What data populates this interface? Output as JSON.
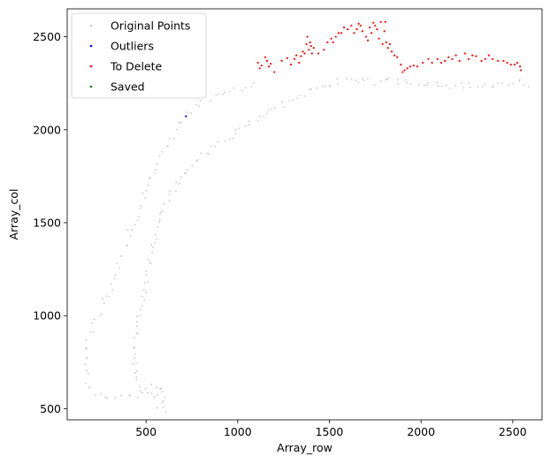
{
  "chart_data": {
    "type": "scatter",
    "title": "",
    "xlabel": "Array_row",
    "ylabel": "Array_col",
    "xlim": [
      70,
      2660
    ],
    "ylim": [
      440,
      2650
    ],
    "xticks": [
      500,
      1000,
      1500,
      2000,
      2500
    ],
    "yticks": [
      500,
      1000,
      1500,
      2000,
      2500
    ],
    "grid": false,
    "legend_placement": "upper-left",
    "series": [
      {
        "name": "Original Points",
        "color": "#c8c8c8",
        "marker": "dot",
        "point_source": "outline",
        "outline_segments": [
          [
            [
              560,
              490
            ],
            [
              580,
              520
            ],
            [
              600,
              580
            ],
            [
              580,
              620
            ],
            [
              530,
              615
            ],
            [
              480,
              605
            ],
            [
              450,
              640
            ],
            [
              440,
              760
            ],
            [
              445,
              880
            ],
            [
              460,
              1000
            ],
            [
              480,
              1100
            ],
            [
              500,
              1200
            ],
            [
              520,
              1300
            ],
            [
              545,
              1400
            ],
            [
              575,
              1500
            ],
            [
              610,
              1600
            ],
            [
              650,
              1680
            ],
            [
              700,
              1750
            ],
            [
              760,
              1820
            ],
            [
              820,
              1870
            ],
            [
              900,
              1920
            ],
            [
              980,
              1970
            ],
            [
              1060,
              2030
            ],
            [
              1150,
              2090
            ],
            [
              1250,
              2140
            ],
            [
              1350,
              2190
            ],
            [
              1450,
              2230
            ],
            [
              1550,
              2255
            ],
            [
              1650,
              2260
            ],
            [
              1750,
              2255
            ],
            [
              1850,
              2265
            ],
            [
              1950,
              2260
            ],
            [
              2050,
              2250
            ],
            [
              2150,
              2240
            ],
            [
              2250,
              2235
            ],
            [
              2350,
              2230
            ],
            [
              2450,
              2240
            ],
            [
              2550,
              2255
            ],
            [
              2600,
              2245
            ]
          ],
          [
            [
              600,
              490
            ],
            [
              570,
              560
            ],
            [
              520,
              580
            ],
            [
              450,
              575
            ],
            [
              380,
              570
            ],
            [
              300,
              575
            ],
            [
              230,
              580
            ],
            [
              180,
              640
            ],
            [
              170,
              760
            ],
            [
              180,
              880
            ],
            [
              220,
              960
            ],
            [
              260,
              1040
            ],
            [
              300,
              1130
            ],
            [
              340,
              1240
            ],
            [
              380,
              1350
            ],
            [
              420,
              1460
            ],
            [
              460,
              1550
            ],
            [
              490,
              1640
            ],
            [
              520,
              1720
            ],
            [
              560,
              1800
            ],
            [
              600,
              1880
            ],
            [
              640,
              1960
            ],
            [
              680,
              2030
            ],
            [
              720,
              2080
            ],
            [
              790,
              2130
            ],
            [
              870,
              2170
            ],
            [
              960,
              2200
            ],
            [
              1050,
              2240
            ],
            [
              1110,
              2270
            ]
          ]
        ],
        "count_per_segment": [
          150,
          90
        ],
        "jitter": [
          14,
          18
        ]
      },
      {
        "name": "Outliers",
        "color": "#0000ff",
        "marker": "dot",
        "points": [
          [
            718,
            2072
          ]
        ]
      },
      {
        "name": "To Delete",
        "color": "#ff0000",
        "marker": "dot",
        "points": [
          [
            1110,
            2360
          ],
          [
            1120,
            2330
          ],
          [
            1130,
            2345
          ],
          [
            1150,
            2390
          ],
          [
            1160,
            2370
          ],
          [
            1170,
            2340
          ],
          [
            1180,
            2355
          ],
          [
            1200,
            2310
          ],
          [
            1240,
            2370
          ],
          [
            1270,
            2385
          ],
          [
            1290,
            2350
          ],
          [
            1310,
            2380
          ],
          [
            1320,
            2400
          ],
          [
            1335,
            2360
          ],
          [
            1345,
            2395
          ],
          [
            1355,
            2420
          ],
          [
            1365,
            2410
          ],
          [
            1375,
            2460
          ],
          [
            1380,
            2500
          ],
          [
            1388,
            2430
          ],
          [
            1395,
            2470
          ],
          [
            1400,
            2450
          ],
          [
            1405,
            2410
          ],
          [
            1415,
            2440
          ],
          [
            1440,
            2410
          ],
          [
            1470,
            2430
          ],
          [
            1490,
            2470
          ],
          [
            1510,
            2490
          ],
          [
            1520,
            2470
          ],
          [
            1535,
            2500
          ],
          [
            1550,
            2520
          ],
          [
            1565,
            2520
          ],
          [
            1580,
            2550
          ],
          [
            1600,
            2540
          ],
          [
            1620,
            2560
          ],
          [
            1635,
            2520
          ],
          [
            1650,
            2540
          ],
          [
            1660,
            2570
          ],
          [
            1670,
            2560
          ],
          [
            1680,
            2530
          ],
          [
            1700,
            2500
          ],
          [
            1710,
            2480
          ],
          [
            1720,
            2550
          ],
          [
            1730,
            2520
          ],
          [
            1740,
            2575
          ],
          [
            1750,
            2560
          ],
          [
            1760,
            2540
          ],
          [
            1770,
            2490
          ],
          [
            1780,
            2580
          ],
          [
            1790,
            2460
          ],
          [
            1800,
            2530
          ],
          [
            1805,
            2580
          ],
          [
            1810,
            2470
          ],
          [
            1820,
            2440
          ],
          [
            1830,
            2460
          ],
          [
            1840,
            2420
          ],
          [
            1855,
            2400
          ],
          [
            1870,
            2390
          ],
          [
            1890,
            2350
          ],
          [
            1900,
            2310
          ],
          [
            1910,
            2320
          ],
          [
            1925,
            2330
          ],
          [
            1940,
            2340
          ],
          [
            1960,
            2345
          ],
          [
            1980,
            2340
          ],
          [
            2010,
            2360
          ],
          [
            2040,
            2380
          ],
          [
            2060,
            2360
          ],
          [
            2090,
            2380
          ],
          [
            2110,
            2360
          ],
          [
            2130,
            2370
          ],
          [
            2150,
            2390
          ],
          [
            2170,
            2380
          ],
          [
            2190,
            2400
          ],
          [
            2210,
            2370
          ],
          [
            2240,
            2410
          ],
          [
            2260,
            2380
          ],
          [
            2280,
            2400
          ],
          [
            2300,
            2395
          ],
          [
            2330,
            2370
          ],
          [
            2350,
            2380
          ],
          [
            2370,
            2400
          ],
          [
            2390,
            2380
          ],
          [
            2420,
            2370
          ],
          [
            2450,
            2370
          ],
          [
            2470,
            2360
          ],
          [
            2490,
            2350
          ],
          [
            2510,
            2350
          ],
          [
            2525,
            2360
          ],
          [
            2540,
            2340
          ],
          [
            2545,
            2320
          ]
        ]
      },
      {
        "name": "Saved",
        "color": "#008000",
        "marker": "dot",
        "points": []
      }
    ]
  }
}
